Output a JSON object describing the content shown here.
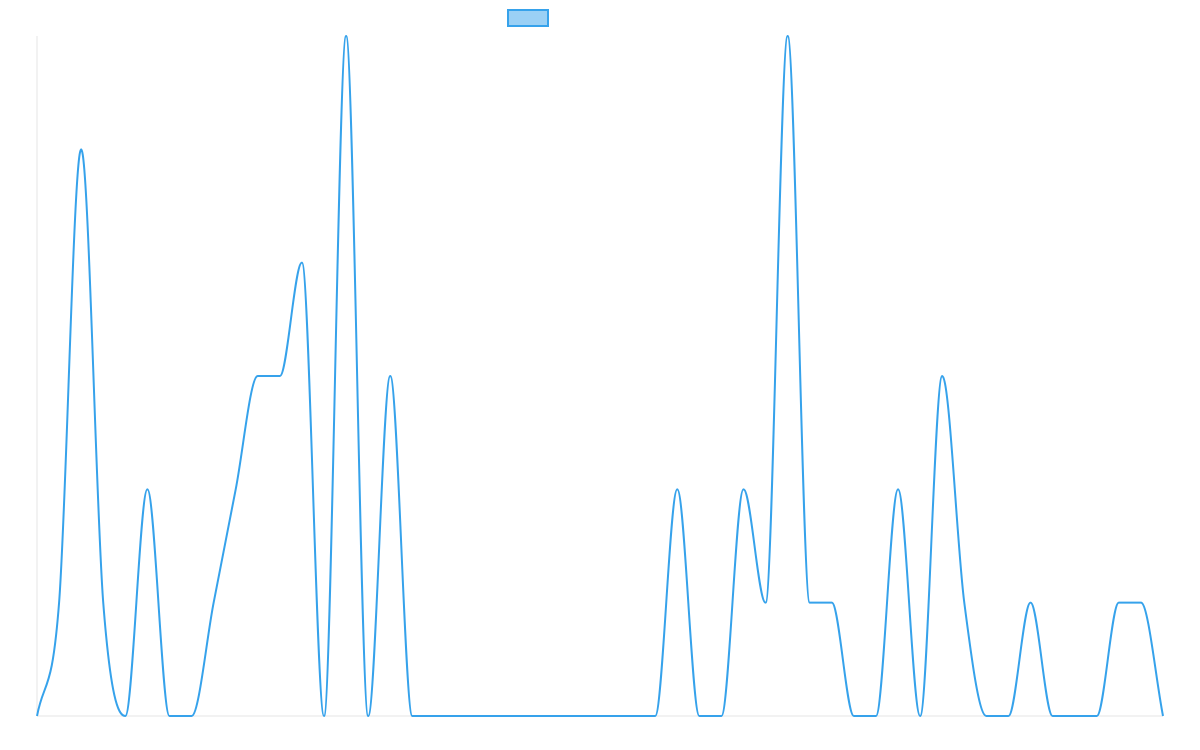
{
  "chart_data": {
    "type": "line",
    "title": "",
    "xlabel": "",
    "ylabel": "",
    "ylim": [
      0,
      6
    ],
    "grid": false,
    "legend": {
      "placement": "top-center",
      "label": ""
    },
    "x": [
      0,
      1,
      2,
      3,
      4,
      5,
      6,
      7,
      8,
      9,
      10,
      11,
      12,
      13,
      14,
      15,
      16,
      17,
      18,
      19,
      20,
      21,
      22,
      23,
      24,
      25,
      26,
      27,
      28,
      29,
      30,
      31,
      32,
      33,
      34,
      35,
      36,
      37,
      38,
      39,
      40,
      41,
      42,
      43,
      44,
      45,
      46,
      47,
      48,
      49,
      50,
      51
    ],
    "series": [
      {
        "values": [
          0,
          1,
          5,
          1,
          0,
          2,
          0,
          0,
          1,
          2,
          3,
          3,
          4,
          0,
          6,
          0,
          3,
          0,
          0,
          0,
          0,
          0,
          0,
          0,
          0,
          0,
          0,
          0,
          0,
          2,
          0,
          0,
          2,
          1,
          6,
          1,
          1,
          0,
          0,
          2,
          0,
          3,
          1,
          0,
          0,
          1,
          0,
          0,
          0,
          1,
          1,
          0
        ],
        "color": "#36a2eb",
        "fill": "#9ad0f5"
      }
    ]
  }
}
